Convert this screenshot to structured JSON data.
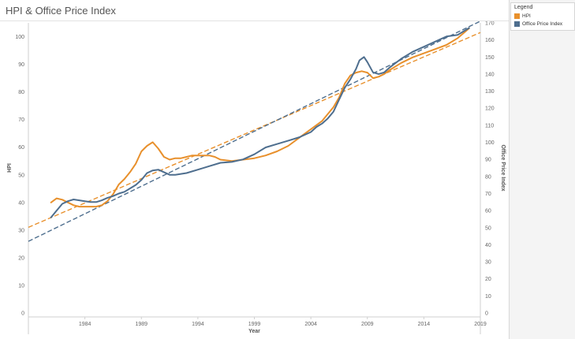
{
  "title": "HPI & Office Price Index",
  "legend": {
    "title": "Legend",
    "items": [
      {
        "label": "HPI",
        "color": "#e8902c"
      },
      {
        "label": "Office Price Index",
        "color": "#4e6e8e"
      }
    ]
  },
  "chart_data": {
    "type": "line",
    "xlabel": "Year",
    "ylabel_left": "HPI",
    "ylabel_right": "Office Price Index",
    "xlim": [
      1979,
      2019
    ],
    "x_ticks": [
      1984,
      1989,
      1994,
      1999,
      2004,
      2009,
      2014,
      2019
    ],
    "ylim_left": [
      0,
      105
    ],
    "y_ticks_left": [
      0,
      10,
      20,
      30,
      40,
      50,
      60,
      70,
      80,
      90,
      100
    ],
    "ylim_right": [
      0,
      170
    ],
    "y_ticks_right": [
      0,
      10,
      20,
      30,
      40,
      50,
      60,
      70,
      80,
      90,
      100,
      110,
      120,
      130,
      140,
      150,
      160,
      170
    ],
    "grid": "none",
    "legend_position": "right",
    "series": [
      {
        "name": "HPI",
        "axis": "left",
        "color": "#e8902c",
        "x": [
          1981,
          1981.5,
          1982,
          1982.5,
          1983,
          1983.5,
          1984,
          1984.5,
          1985,
          1985.5,
          1986,
          1986.5,
          1987,
          1987.5,
          1988,
          1988.5,
          1989,
          1989.5,
          1990,
          1990.5,
          1991,
          1991.5,
          1992,
          1992.5,
          1993,
          1993.5,
          1994,
          1994.5,
          1995,
          1995.5,
          1996,
          1997,
          1998,
          1999,
          2000,
          2001,
          2002,
          2003,
          2004,
          2005,
          2006,
          2006.5,
          2007,
          2007.5,
          2008,
          2008.5,
          2009,
          2009.5,
          2010,
          2010.5,
          2011,
          2012,
          2013,
          2014,
          2015,
          2016,
          2017,
          2018
        ],
        "y": [
          40,
          41.5,
          41,
          40,
          39,
          38.5,
          38.5,
          38.5,
          38.5,
          39,
          40.5,
          43,
          46.5,
          48.5,
          51,
          54,
          58.5,
          60.5,
          61.8,
          59.5,
          56.5,
          55.5,
          56,
          56,
          56.5,
          57,
          57,
          57,
          57,
          56.5,
          55.5,
          55,
          55.5,
          56,
          57,
          58.5,
          60.5,
          63.5,
          66.5,
          69.5,
          74.5,
          78,
          83,
          86,
          87,
          87.5,
          87,
          85,
          85.5,
          86.5,
          88,
          90.5,
          92.5,
          94,
          95.5,
          97,
          99.5,
          103
        ]
      },
      {
        "name": "Office Price Index",
        "axis": "right",
        "color": "#4e6e8e",
        "x": [
          1981,
          1981.5,
          1982,
          1982.5,
          1983,
          1983.5,
          1984,
          1984.5,
          1985,
          1985.5,
          1986,
          1986.5,
          1987,
          1987.5,
          1988,
          1988.5,
          1989,
          1989.5,
          1990,
          1990.5,
          1991,
          1991.5,
          1992,
          1993,
          1994,
          1995,
          1996,
          1997,
          1998,
          1999,
          2000,
          2001,
          2002,
          2003,
          2004,
          2004.5,
          2005,
          2005.5,
          2006,
          2006.5,
          2007,
          2007.5,
          2008,
          2008.3,
          2008.7,
          2009,
          2009.5,
          2010,
          2010.5,
          2011,
          2012,
          2013,
          2014,
          2015,
          2016,
          2017,
          2018
        ],
        "y": [
          56,
          60,
          64,
          65.5,
          66.5,
          66,
          65.5,
          65,
          65,
          66,
          67.5,
          68.5,
          70,
          71,
          73,
          75,
          78,
          82,
          83.5,
          84,
          82.5,
          81,
          81,
          82,
          84,
          86,
          88,
          88.5,
          90,
          93,
          97,
          99,
          101,
          103,
          106,
          109,
          111,
          114,
          118,
          125,
          132,
          137,
          143,
          148,
          150,
          147,
          141,
          140,
          141,
          144,
          149,
          153,
          156,
          159,
          162,
          163,
          167
        ]
      }
    ],
    "trend_lines": [
      {
        "name": "HPI",
        "axis": "left",
        "color": "#e8902c",
        "x": [
          1979,
          2019
        ],
        "y": [
          31,
          101.5
        ]
      },
      {
        "name": "Office Price Index",
        "axis": "right",
        "color": "#4e6e8e",
        "x": [
          1979,
          2019
        ],
        "y": [
          42,
          171
        ]
      }
    ]
  }
}
